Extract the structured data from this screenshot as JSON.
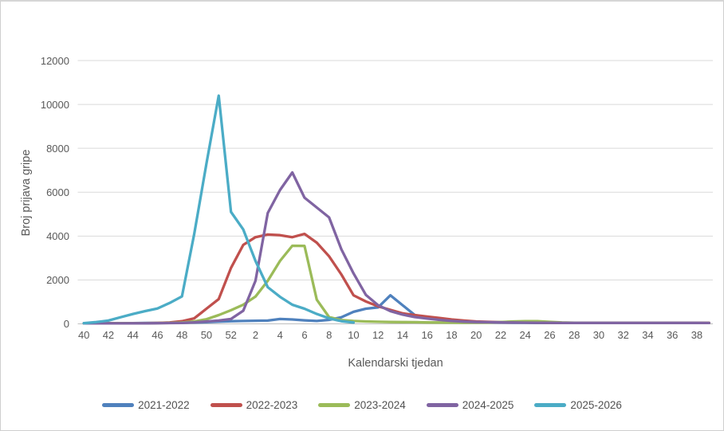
{
  "chart_data": {
    "type": "line",
    "title": "",
    "xlabel": "Kalendarski tjedan",
    "ylabel": "Broj prijava gripe",
    "ylim": [
      0,
      12000
    ],
    "yticks": [
      12000,
      10000,
      8000,
      6000,
      4000,
      2000,
      0
    ],
    "xtick_every": 2,
    "grid": true,
    "legend_position": "bottom",
    "categories": [
      "40",
      "41",
      "42",
      "43",
      "44",
      "45",
      "46",
      "47",
      "48",
      "49",
      "50",
      "51",
      "52",
      "1",
      "2",
      "3",
      "4",
      "5",
      "6",
      "7",
      "8",
      "9",
      "10",
      "11",
      "12",
      "13",
      "14",
      "15",
      "16",
      "17",
      "18",
      "19",
      "20",
      "21",
      "22",
      "23",
      "24",
      "25",
      "26",
      "27",
      "28",
      "29",
      "30",
      "31",
      "32",
      "33",
      "34",
      "35",
      "36",
      "37",
      "38",
      "39"
    ],
    "series": [
      {
        "name": "2021-2022",
        "color": "#4F81BD",
        "values": [
          30,
          30,
          30,
          30,
          30,
          40,
          40,
          50,
          50,
          60,
          80,
          100,
          120,
          130,
          140,
          150,
          220,
          200,
          160,
          130,
          180,
          300,
          550,
          690,
          750,
          1300,
          850,
          400,
          280,
          220,
          170,
          120,
          90,
          70,
          60,
          50,
          50,
          45,
          40,
          40,
          40,
          40,
          40,
          40,
          40,
          40,
          40,
          40,
          40,
          40,
          40,
          40
        ]
      },
      {
        "name": "2022-2023",
        "color": "#C0504D",
        "values": [
          20,
          20,
          25,
          25,
          30,
          30,
          40,
          60,
          120,
          250,
          690,
          1130,
          2550,
          3600,
          3950,
          4070,
          4040,
          3950,
          4100,
          3700,
          3080,
          2250,
          1300,
          1020,
          800,
          640,
          480,
          400,
          330,
          270,
          200,
          150,
          110,
          90,
          75,
          65,
          60,
          55,
          50,
          50,
          45,
          45,
          45,
          45,
          45,
          45,
          45,
          45,
          45,
          45,
          45,
          45
        ]
      },
      {
        "name": "2023-2024",
        "color": "#9BBB59",
        "values": [
          20,
          20,
          20,
          25,
          25,
          30,
          35,
          45,
          60,
          110,
          210,
          400,
          620,
          870,
          1240,
          1960,
          2870,
          3560,
          3550,
          1100,
          310,
          170,
          130,
          110,
          95,
          85,
          80,
          75,
          65,
          60,
          55,
          50,
          55,
          60,
          80,
          110,
          120,
          120,
          90,
          60,
          50,
          45,
          45,
          45,
          45,
          45,
          45,
          45,
          40,
          40,
          40,
          40
        ]
      },
      {
        "name": "2024-2025",
        "color": "#8064A2",
        "values": [
          20,
          20,
          20,
          20,
          25,
          25,
          30,
          35,
          45,
          70,
          110,
          150,
          220,
          600,
          1960,
          5050,
          6100,
          6900,
          5750,
          5300,
          4850,
          3400,
          2300,
          1320,
          850,
          580,
          420,
          310,
          240,
          180,
          130,
          100,
          85,
          75,
          65,
          60,
          55,
          50,
          50,
          45,
          45,
          45,
          45,
          45,
          45,
          45,
          45,
          45,
          45,
          45,
          45,
          40
        ]
      },
      {
        "name": "2025-2026",
        "color": "#4BACC6",
        "values": [
          30,
          80,
          150,
          300,
          450,
          580,
          700,
          950,
          1250,
          4100,
          7300,
          10400,
          5100,
          4300,
          2870,
          1670,
          1230,
          870,
          690,
          450,
          250,
          120,
          60,
          null,
          null,
          null,
          null,
          null,
          null,
          null,
          null,
          null,
          null,
          null,
          null,
          null,
          null,
          null,
          null,
          null,
          null,
          null,
          null,
          null,
          null,
          null,
          null,
          null,
          null,
          null,
          null,
          null
        ]
      }
    ]
  },
  "colors": {
    "grid": "#D9D9D9",
    "axis_line": "#BFBFBF",
    "text": "#595959",
    "border": "#CFCFCF",
    "background": "#FFFFFF"
  }
}
